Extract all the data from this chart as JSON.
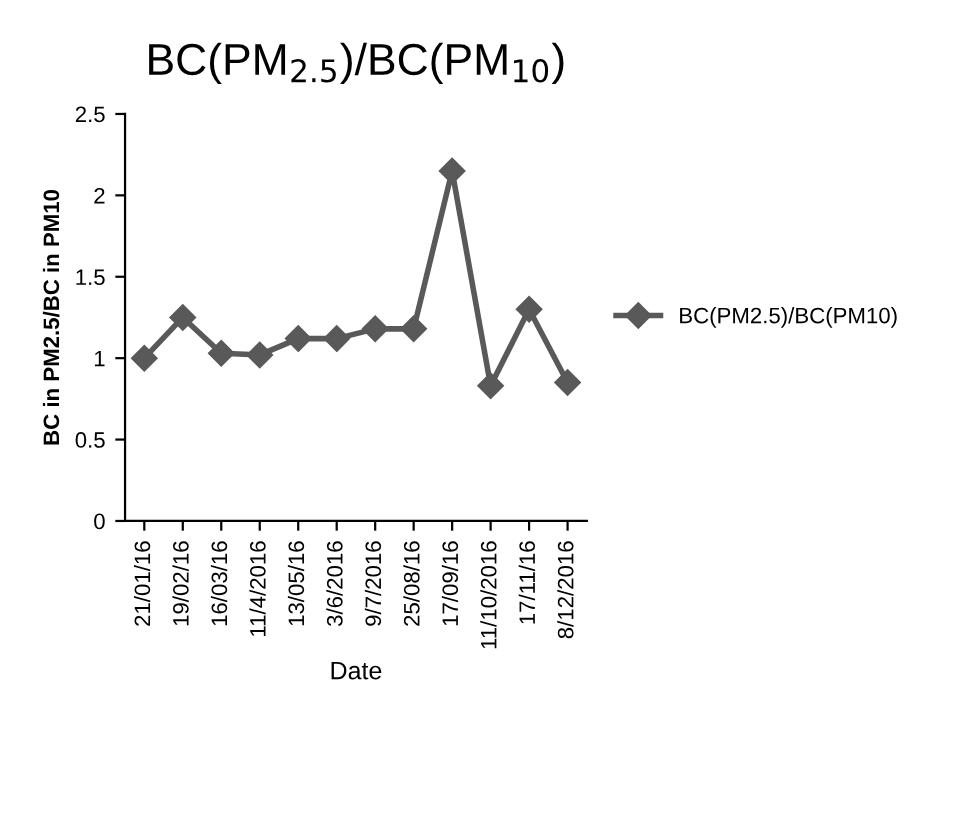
{
  "chart_data": {
    "type": "line",
    "title": "BC(PM$_{2.5}$)/BC(PM$_{10}$)",
    "xlabel": "Date",
    "ylabel": "BC in PM2.5/BC in PM10",
    "categories": [
      "21/01/16",
      "19/02/16",
      "16/03/16",
      "11/4/2016",
      "13/05/16",
      "3/6/2016",
      "9/7/2016",
      "25/08/16",
      "17/09/16",
      "11/10/2016",
      "17/11/16",
      "8/12/2016"
    ],
    "series": [
      {
        "name": "BC(PM2.5)/BC(PM10)",
        "color": "#595959",
        "values": [
          1.0,
          1.25,
          1.03,
          1.02,
          1.12,
          1.12,
          1.18,
          1.18,
          2.15,
          0.83,
          1.3,
          0.85
        ]
      }
    ],
    "ylim": [
      0,
      2.5
    ],
    "yticks": [
      0,
      0.5,
      1,
      1.5,
      2,
      2.5
    ],
    "marker": "diamond",
    "line_style": "solid",
    "legend": "right",
    "grid": false
  }
}
